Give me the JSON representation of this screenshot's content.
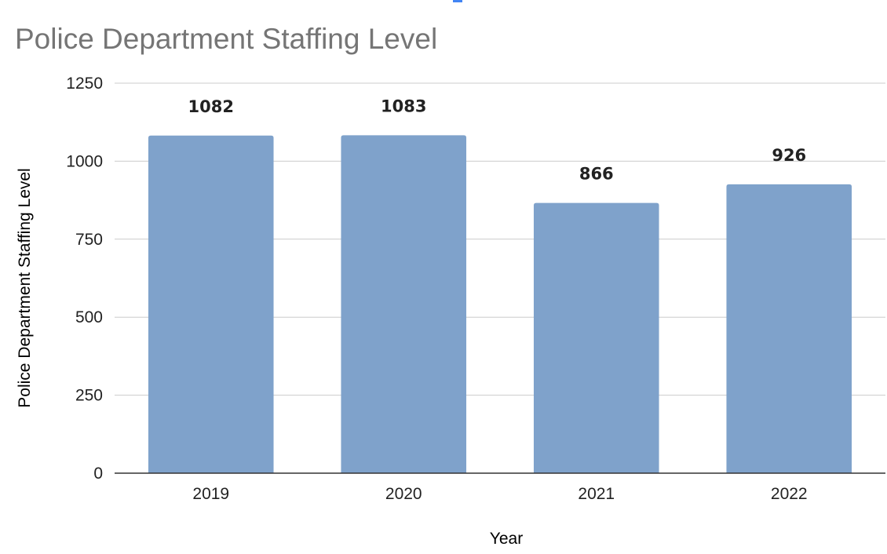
{
  "chart_data": {
    "type": "bar",
    "title": "Police Department Staffing Level",
    "xlabel": "Year",
    "ylabel": "Police Department Staffing Level",
    "categories": [
      "2019",
      "2020",
      "2021",
      "2022"
    ],
    "series": [
      {
        "values": [
          1082,
          1083,
          866,
          926
        ],
        "color": "#7fa2cb"
      }
    ],
    "data_labels": [
      "1082",
      "1083",
      "866",
      "926"
    ],
    "yticks": [
      "0",
      "250",
      "500",
      "750",
      "1000",
      "1250"
    ],
    "ylim": [
      0,
      1250
    ],
    "grid": true,
    "legend": "none"
  }
}
